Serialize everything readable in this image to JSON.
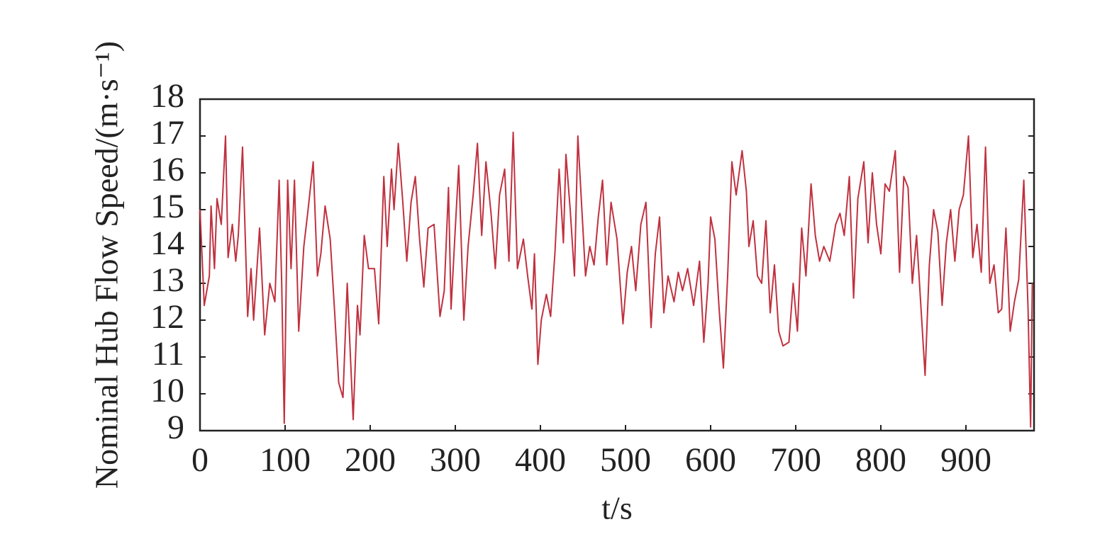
{
  "chart_data": {
    "type": "line",
    "ylabel": "Nominal Hub Flow Speed/(m·s⁻¹)",
    "xlabel": "t/s",
    "xlim": [
      0,
      980
    ],
    "xticks": [
      0,
      100,
      200,
      300,
      400,
      500,
      600,
      700,
      800,
      900
    ],
    "ylim": [
      9,
      18
    ],
    "yticks": [
      9,
      10,
      11,
      12,
      13,
      14,
      15,
      16,
      17,
      18
    ],
    "series": [
      {
        "color": "#c0313f",
        "x": [
          0,
          5,
          11,
          13,
          17,
          20,
          25,
          30,
          33,
          38,
          42,
          45,
          50,
          56,
          60,
          63,
          70,
          76,
          82,
          88,
          93,
          96,
          99,
          103,
          107,
          111,
          116,
          122,
          127,
          133,
          138,
          142,
          147,
          153,
          158,
          163,
          168,
          173,
          180,
          185,
          188,
          193,
          198,
          205,
          210,
          216,
          220,
          225,
          228,
          233,
          238,
          243,
          248,
          253,
          258,
          263,
          268,
          275,
          282,
          287,
          292,
          295,
          300,
          304,
          310,
          315,
          321,
          326,
          331,
          336,
          342,
          347,
          352,
          358,
          363,
          368,
          373,
          380,
          385,
          390,
          393,
          397,
          401,
          407,
          412,
          417,
          422,
          427,
          430,
          435,
          440,
          444,
          448,
          453,
          458,
          463,
          468,
          473,
          478,
          483,
          490,
          497,
          502,
          507,
          512,
          518,
          524,
          530,
          535,
          540,
          545,
          550,
          557,
          562,
          567,
          573,
          580,
          587,
          592,
          597,
          600,
          605,
          610,
          615,
          620,
          625,
          630,
          637,
          642,
          645,
          650,
          655,
          660,
          665,
          670,
          675,
          680,
          685,
          692,
          697,
          702,
          707,
          712,
          718,
          723,
          728,
          733,
          740,
          747,
          752,
          757,
          763,
          768,
          773,
          780,
          785,
          790,
          795,
          800,
          805,
          810,
          817,
          822,
          827,
          832,
          837,
          842,
          847,
          852,
          857,
          862,
          867,
          872,
          877,
          882,
          887,
          892,
          897,
          903,
          908,
          913,
          918,
          923,
          928,
          933,
          938,
          942,
          947,
          952,
          957,
          962,
          968,
          973,
          976,
          978
        ],
        "values": [
          15.0,
          12.4,
          13.2,
          15.1,
          13.4,
          15.3,
          14.6,
          17.0,
          13.7,
          14.6,
          13.6,
          14.3,
          16.7,
          12.1,
          13.4,
          12.0,
          14.5,
          11.6,
          13.0,
          12.5,
          15.8,
          13.0,
          9.2,
          15.8,
          13.4,
          15.8,
          11.7,
          14.0,
          15.0,
          16.3,
          13.2,
          13.8,
          15.1,
          14.2,
          12.3,
          10.3,
          9.9,
          13.0,
          9.3,
          12.4,
          11.6,
          14.3,
          13.4,
          13.4,
          11.9,
          15.9,
          14.0,
          16.1,
          15.0,
          16.8,
          15.3,
          13.6,
          15.2,
          15.9,
          14.2,
          12.9,
          14.5,
          14.6,
          12.1,
          12.8,
          15.6,
          12.3,
          14.5,
          16.2,
          12.0,
          14.0,
          15.4,
          16.8,
          14.3,
          16.3,
          14.9,
          13.4,
          15.4,
          16.1,
          13.6,
          17.1,
          13.4,
          14.2,
          13.2,
          12.3,
          13.8,
          10.8,
          12.0,
          12.7,
          12.1,
          13.8,
          16.1,
          14.1,
          16.5,
          15.0,
          13.2,
          17.0,
          15.3,
          13.2,
          14.0,
          13.5,
          14.8,
          15.8,
          13.5,
          15.2,
          14.2,
          11.9,
          13.3,
          14.0,
          12.8,
          14.6,
          15.2,
          11.8,
          13.8,
          14.8,
          12.2,
          13.2,
          12.5,
          13.3,
          12.8,
          13.4,
          12.4,
          13.6,
          11.4,
          13.0,
          14.8,
          14.2,
          12.3,
          10.7,
          13.2,
          16.3,
          15.4,
          16.6,
          15.5,
          14.0,
          14.7,
          13.2,
          13.0,
          14.7,
          12.2,
          13.5,
          11.7,
          11.3,
          11.4,
          13.0,
          11.7,
          14.5,
          13.2,
          15.7,
          14.3,
          13.6,
          14.0,
          13.6,
          14.6,
          14.9,
          14.3,
          15.9,
          12.6,
          15.3,
          16.3,
          14.1,
          16.0,
          14.6,
          13.8,
          15.7,
          15.5,
          16.6,
          13.3,
          15.9,
          15.6,
          13.0,
          14.3,
          12.4,
          10.5,
          13.5,
          15.0,
          14.4,
          12.4,
          14.1,
          15.0,
          13.6,
          15.0,
          15.4,
          17.0,
          13.7,
          14.6,
          13.3,
          16.7,
          13.0,
          13.5,
          12.2,
          12.3,
          14.5,
          11.7,
          12.5,
          13.1,
          15.8,
          12.3,
          9.1,
          13.0
        ]
      }
    ]
  }
}
